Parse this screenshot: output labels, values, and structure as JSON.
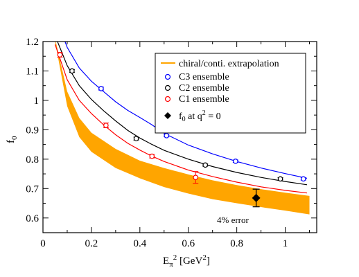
{
  "chart_data": {
    "type": "scatter",
    "xlabel": "E_π² [GeV²]",
    "ylabel": "f₀",
    "xlim": [
      0,
      1.13
    ],
    "ylim": [
      0.55,
      1.2
    ],
    "x_ticks": [
      "0",
      "0.2",
      "0.4",
      "0.6",
      "0.8",
      "1"
    ],
    "y_ticks": [
      "0.6",
      "0.7",
      "0.8",
      "0.9",
      "1",
      "1.1",
      "1.2"
    ],
    "grid": false,
    "legend_position": "top-right",
    "legend": {
      "band": "chiral/conti. extrapolation",
      "c3": "C3 ensemble",
      "c2": "C2 ensemble",
      "c1": "C1 ensemble",
      "q2zero": "f₀ at q² = 0"
    },
    "colors": {
      "band": "#FFA500",
      "c3": "#0000FF",
      "c2": "#000000",
      "c1": "#FF0000",
      "q2zero": "#000000"
    },
    "series": [
      {
        "name": "C3 ensemble",
        "color": "#0000FF",
        "points": [
          {
            "x": 0.24,
            "y": 1.04,
            "err": 0.005
          },
          {
            "x": 0.51,
            "y": 0.88,
            "err": 0.004
          },
          {
            "x": 0.795,
            "y": 0.793,
            "err": 0.004
          },
          {
            "x": 1.075,
            "y": 0.733,
            "err": 0.004
          }
        ],
        "curve": [
          [
            0.05,
            1.29
          ],
          [
            0.1,
            1.18
          ],
          [
            0.15,
            1.11
          ],
          [
            0.2,
            1.065
          ],
          [
            0.25,
            1.03
          ],
          [
            0.3,
            0.995
          ],
          [
            0.35,
            0.966
          ],
          [
            0.4,
            0.942
          ],
          [
            0.45,
            0.917
          ],
          [
            0.5,
            0.888
          ],
          [
            0.6,
            0.848
          ],
          [
            0.7,
            0.818
          ],
          [
            0.8,
            0.792
          ],
          [
            0.9,
            0.77
          ],
          [
            1.0,
            0.751
          ],
          [
            1.09,
            0.735
          ]
        ]
      },
      {
        "name": "C2 ensemble",
        "color": "#000000",
        "points": [
          {
            "x": 0.12,
            "y": 1.1,
            "err": 0.005
          },
          {
            "x": 0.385,
            "y": 0.87,
            "err": 0.005
          },
          {
            "x": 0.67,
            "y": 0.78,
            "err": 0.004
          },
          {
            "x": 0.98,
            "y": 0.733,
            "err": 0.004
          }
        ],
        "curve": [
          [
            0.05,
            1.22
          ],
          [
            0.1,
            1.118
          ],
          [
            0.15,
            1.05
          ],
          [
            0.2,
            1.003
          ],
          [
            0.25,
            0.965
          ],
          [
            0.3,
            0.93
          ],
          [
            0.35,
            0.898
          ],
          [
            0.4,
            0.872
          ],
          [
            0.45,
            0.85
          ],
          [
            0.5,
            0.83
          ],
          [
            0.6,
            0.8
          ],
          [
            0.7,
            0.775
          ],
          [
            0.8,
            0.755
          ],
          [
            0.9,
            0.738
          ],
          [
            1.0,
            0.724
          ],
          [
            1.09,
            0.713
          ]
        ]
      },
      {
        "name": "C1 ensemble",
        "color": "#FF0000",
        "points": [
          {
            "x": 0.07,
            "y": 1.155,
            "err": 0.008
          },
          {
            "x": 0.26,
            "y": 0.915,
            "err": 0.008
          },
          {
            "x": 0.45,
            "y": 0.81,
            "err": 0.006
          },
          {
            "x": 0.63,
            "y": 0.738,
            "err": 0.02
          }
        ],
        "curve": [
          [
            0.05,
            1.19
          ],
          [
            0.1,
            1.07
          ],
          [
            0.15,
            1.0
          ],
          [
            0.2,
            0.955
          ],
          [
            0.25,
            0.917
          ],
          [
            0.3,
            0.883
          ],
          [
            0.35,
            0.854
          ],
          [
            0.4,
            0.831
          ],
          [
            0.45,
            0.81
          ],
          [
            0.5,
            0.792
          ],
          [
            0.6,
            0.763
          ],
          [
            0.7,
            0.741
          ],
          [
            0.8,
            0.722
          ],
          [
            0.9,
            0.706
          ],
          [
            1.0,
            0.694
          ],
          [
            1.09,
            0.685
          ]
        ]
      }
    ],
    "band": {
      "name": "chiral/conti. extrapolation",
      "upper": [
        [
          0.05,
          1.21
        ],
        [
          0.1,
          1.03
        ],
        [
          0.15,
          0.94
        ],
        [
          0.2,
          0.89
        ],
        [
          0.3,
          0.835
        ],
        [
          0.4,
          0.795
        ],
        [
          0.5,
          0.77
        ],
        [
          0.6,
          0.748
        ],
        [
          0.7,
          0.728
        ],
        [
          0.8,
          0.712
        ],
        [
          0.9,
          0.698
        ],
        [
          1.0,
          0.686
        ],
        [
          1.1,
          0.675
        ]
      ],
      "lower": [
        [
          0.05,
          1.2
        ],
        [
          0.1,
          0.98
        ],
        [
          0.15,
          0.875
        ],
        [
          0.2,
          0.825
        ],
        [
          0.3,
          0.77
        ],
        [
          0.4,
          0.735
        ],
        [
          0.5,
          0.705
        ],
        [
          0.6,
          0.683
        ],
        [
          0.7,
          0.664
        ],
        [
          0.8,
          0.65
        ],
        [
          0.9,
          0.637
        ],
        [
          1.0,
          0.625
        ],
        [
          1.1,
          0.612
        ]
      ]
    },
    "q2zero_point": {
      "x": 0.88,
      "y": 0.668,
      "err": 0.03
    },
    "annotation": "4% error"
  }
}
